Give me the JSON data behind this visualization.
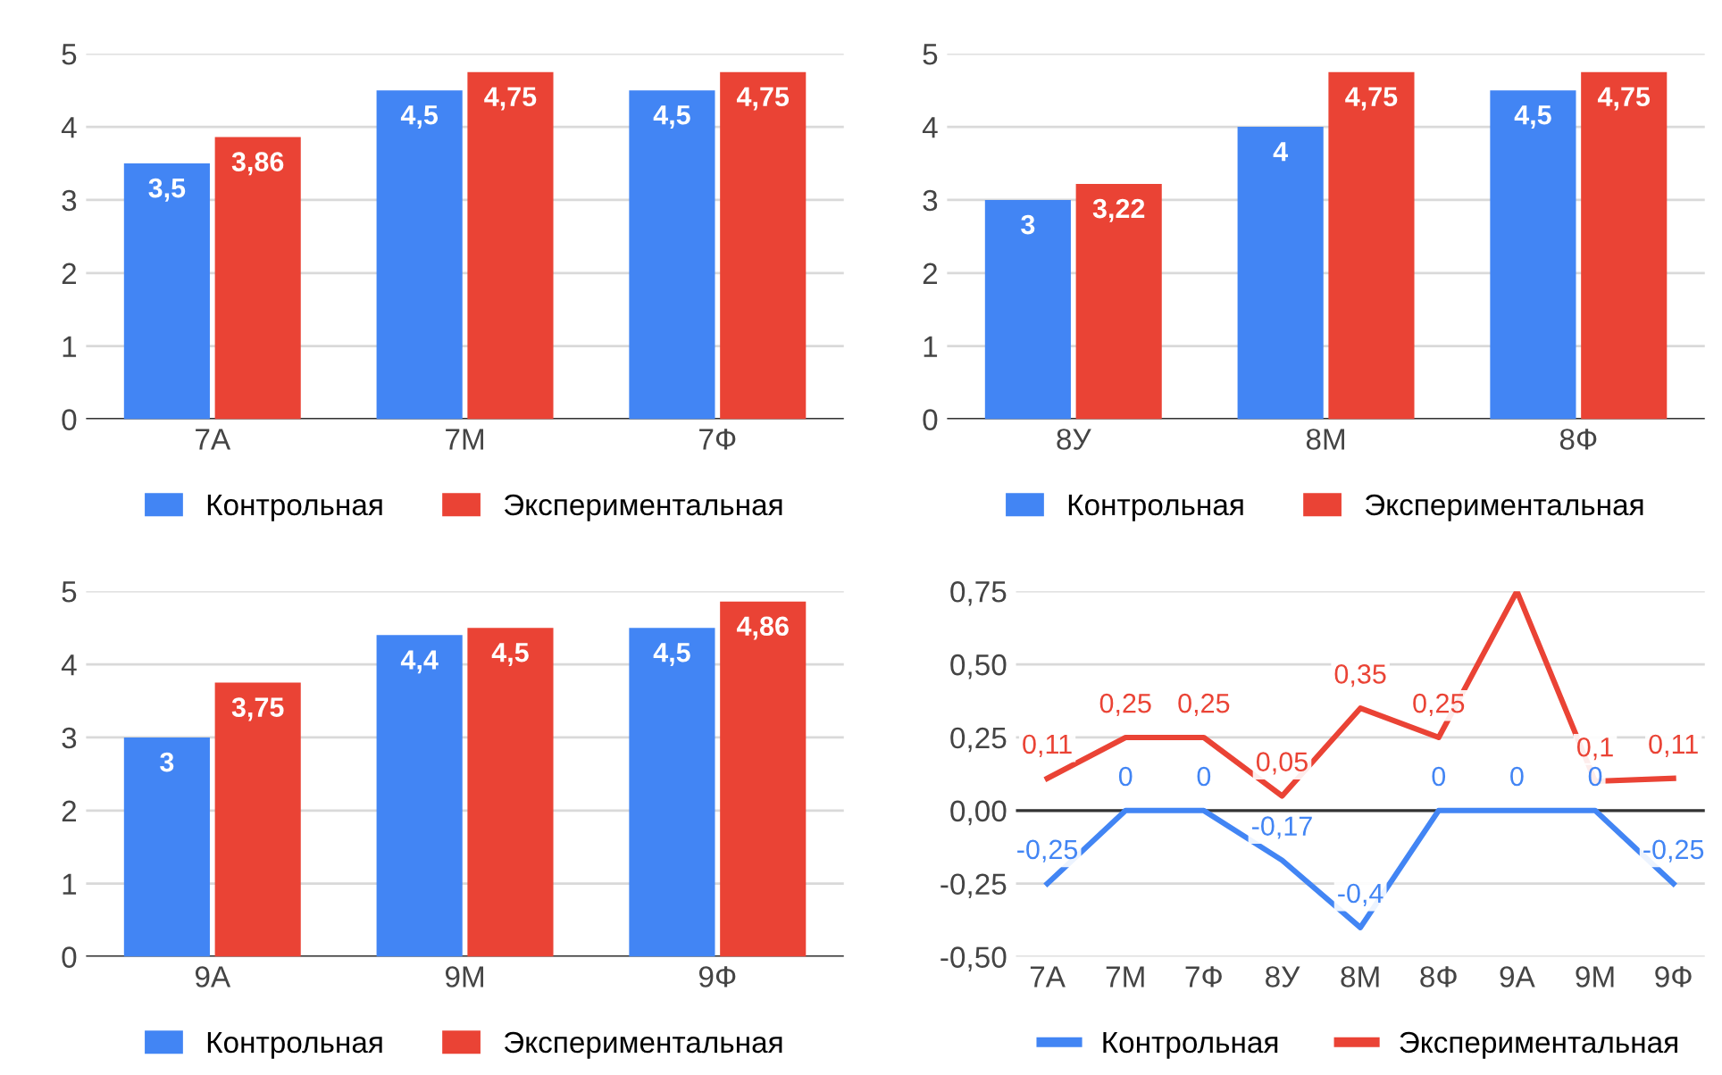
{
  "chart_data": [
    {
      "type": "bar",
      "categories": [
        "7А",
        "7М",
        "7Ф"
      ],
      "ylim": [
        0,
        5
      ],
      "yticks": [
        0,
        1,
        2,
        3,
        4,
        5
      ],
      "grid": "y",
      "legend": "bottom",
      "series": [
        {
          "name": "Контрольная",
          "color": "#4285f4",
          "values": [
            3.5,
            4.5,
            4.5
          ],
          "value_labels": [
            "3,5",
            "4,5",
            "4,5"
          ]
        },
        {
          "name": "Экспериментальная",
          "color": "#ea4335",
          "values": [
            3.86,
            4.75,
            4.75
          ],
          "value_labels": [
            "3,86",
            "4,75",
            "4,75"
          ]
        }
      ]
    },
    {
      "type": "bar",
      "categories": [
        "8У",
        "8М",
        "8Ф"
      ],
      "ylim": [
        0,
        5
      ],
      "yticks": [
        0,
        1,
        2,
        3,
        4,
        5
      ],
      "grid": "y",
      "legend": "bottom",
      "series": [
        {
          "name": "Контрольная",
          "color": "#4285f4",
          "values": [
            3,
            4,
            4.5
          ],
          "value_labels": [
            "3",
            "4",
            "4,5"
          ]
        },
        {
          "name": "Экспериментальная",
          "color": "#ea4335",
          "values": [
            3.22,
            4.75,
            4.75
          ],
          "value_labels": [
            "3,22",
            "4,75",
            "4,75"
          ]
        }
      ]
    },
    {
      "type": "bar",
      "categories": [
        "9А",
        "9М",
        "9Ф"
      ],
      "ylim": [
        0,
        5
      ],
      "yticks": [
        0,
        1,
        2,
        3,
        4,
        5
      ],
      "grid": "y",
      "legend": "bottom",
      "series": [
        {
          "name": "Контрольная",
          "color": "#4285f4",
          "values": [
            3,
            4.4,
            4.5
          ],
          "value_labels": [
            "3",
            "4,4",
            "4,5"
          ]
        },
        {
          "name": "Экспериментальная",
          "color": "#ea4335",
          "values": [
            3.75,
            4.5,
            4.86
          ],
          "value_labels": [
            "3,75",
            "4,5",
            "4,86"
          ]
        }
      ]
    },
    {
      "type": "line",
      "categories": [
        "7А",
        "7М",
        "7Ф",
        "8У",
        "8М",
        "8Ф",
        "9А",
        "9М",
        "9Ф"
      ],
      "ylim": [
        -0.5,
        0.75
      ],
      "yticks": [
        {
          "value": -0.5,
          "label": "-0,50"
        },
        {
          "value": -0.25,
          "label": "-0,25"
        },
        {
          "value": 0,
          "label": "0,00"
        },
        {
          "value": 0.25,
          "label": "0,25"
        },
        {
          "value": 0.5,
          "label": "0,50"
        },
        {
          "value": 0.75,
          "label": "0,75"
        }
      ],
      "grid": "y",
      "legend": "bottom",
      "marker": "none",
      "line_style": "solid",
      "series": [
        {
          "name": "Контрольная",
          "color": "#4285f4",
          "values": [
            -0.25,
            0,
            0,
            -0.17,
            -0.4,
            0,
            0,
            0,
            -0.25
          ],
          "value_labels": [
            "-0,25",
            "0",
            "0",
            "-0,17",
            "-0,4",
            "0",
            "0",
            "0",
            "-0,25"
          ]
        },
        {
          "name": "Экспериментальная",
          "color": "#ea4335",
          "values": [
            0.11,
            0.25,
            0.25,
            0.05,
            0.35,
            0.25,
            0.75,
            0.1,
            0.11
          ],
          "value_labels": [
            "0,11",
            "0,25",
            "0,25",
            "0,05",
            "0,35",
            "0,25",
            null,
            "0,1",
            "0,11"
          ]
        }
      ]
    }
  ]
}
